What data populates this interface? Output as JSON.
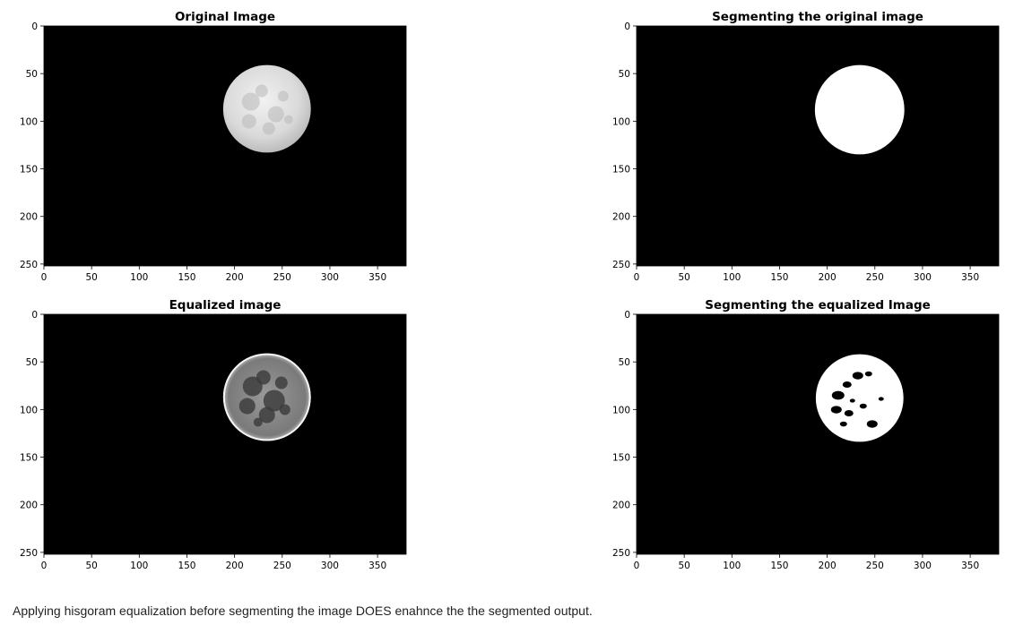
{
  "figure": {
    "panels": [
      {
        "id": "original",
        "title": "Original Image",
        "image_icon": "moon-grayscale-image",
        "xticks": [
          "0",
          "50",
          "100",
          "150",
          "200",
          "250",
          "300",
          "350"
        ],
        "yticks": [
          "0",
          "50",
          "100",
          "150",
          "200",
          "250"
        ],
        "xlim": [
          0,
          380
        ],
        "ylim": [
          252,
          0
        ]
      },
      {
        "id": "segmented-original",
        "title": "Segmenting the original image",
        "image_icon": "white-disc-mask-image",
        "xticks": [
          "0",
          "50",
          "100",
          "150",
          "200",
          "250",
          "300",
          "350"
        ],
        "yticks": [
          "0",
          "50",
          "100",
          "150",
          "200",
          "250"
        ],
        "xlim": [
          0,
          380
        ],
        "ylim": [
          252,
          0
        ]
      },
      {
        "id": "equalized",
        "title": "Equalized image",
        "image_icon": "moon-equalized-image",
        "xticks": [
          "0",
          "50",
          "100",
          "150",
          "200",
          "250",
          "300",
          "350"
        ],
        "yticks": [
          "0",
          "50",
          "100",
          "150",
          "200",
          "250"
        ],
        "xlim": [
          0,
          380
        ],
        "ylim": [
          252,
          0
        ]
      },
      {
        "id": "segmented-equalized",
        "title": "Segmenting the equalized Image",
        "image_icon": "speckled-mask-image",
        "xticks": [
          "0",
          "50",
          "100",
          "150",
          "200",
          "250",
          "300",
          "350"
        ],
        "yticks": [
          "0",
          "50",
          "100",
          "150",
          "200",
          "250"
        ],
        "xlim": [
          0,
          380
        ],
        "ylim": [
          252,
          0
        ]
      }
    ]
  },
  "caption": "Applying hisgoram equalization before segmenting the image DOES enahnce the the segmented output."
}
